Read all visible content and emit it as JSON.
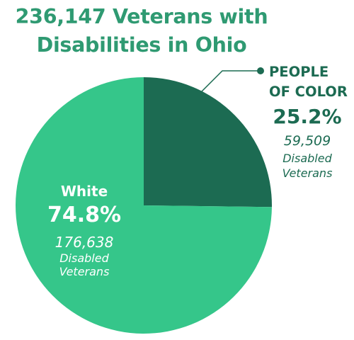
{
  "title": {
    "line1": "236,147 Veterans with",
    "line2": "Disabilities in Ohio"
  },
  "chart_data": {
    "type": "pie",
    "title": "236,147 Veterans with Disabilities in Ohio",
    "slices": [
      {
        "name": "PEOPLE OF COLOR",
        "percent": 25.2,
        "percent_label": "25.2%",
        "count_label": "59,509",
        "description": "Disabled Veterans",
        "color": "#1c6b52"
      },
      {
        "name": "White",
        "percent": 74.8,
        "percent_label": "74.8%",
        "count_label": "176,638",
        "description": "Disabled Veterans",
        "color": "#35c68a"
      }
    ]
  }
}
